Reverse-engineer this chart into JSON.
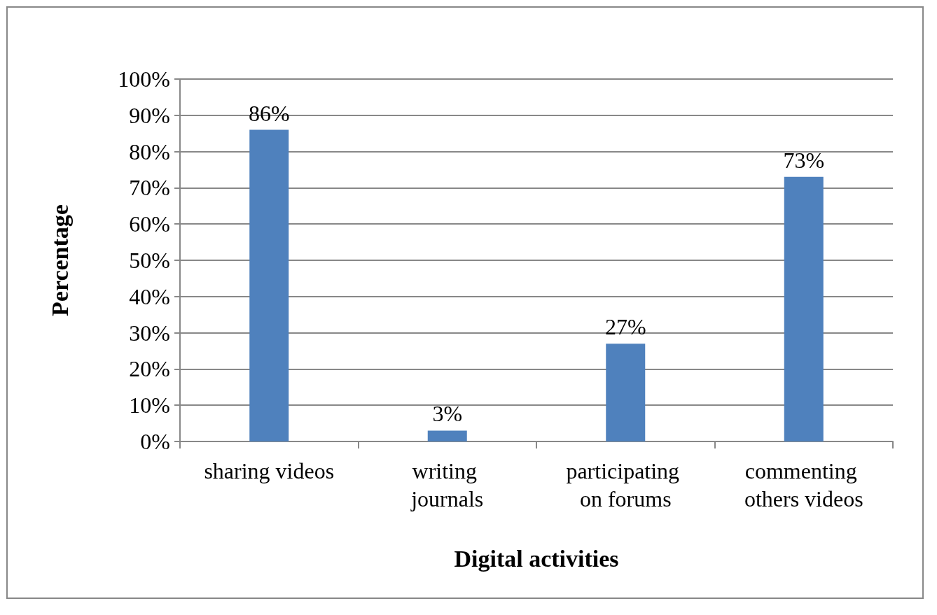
{
  "chart_data": {
    "type": "bar",
    "xlabel": "Digital activities",
    "ylabel": "Percentage",
    "categories": [
      "sharing videos",
      "writing journals",
      "participating on forums",
      "commenting others videos"
    ],
    "values": [
      86,
      3,
      27,
      73
    ],
    "color": "#4f81bd",
    "value_labels": [
      "86%",
      "3%",
      "27%",
      "73%"
    ],
    "ylim": [
      0,
      100
    ],
    "yticks": [
      {
        "value": 0,
        "label": "0%"
      },
      {
        "value": 10,
        "label": "10%"
      },
      {
        "value": 20,
        "label": "20%"
      },
      {
        "value": 30,
        "label": "30%"
      },
      {
        "value": 40,
        "label": "40%"
      },
      {
        "value": 50,
        "label": "50%"
      },
      {
        "value": 60,
        "label": "60%"
      },
      {
        "value": 70,
        "label": "70%"
      },
      {
        "value": 80,
        "label": "80%"
      },
      {
        "value": 90,
        "label": "90%"
      },
      {
        "value": 100,
        "label": "100%"
      }
    ],
    "grid": "y"
  }
}
